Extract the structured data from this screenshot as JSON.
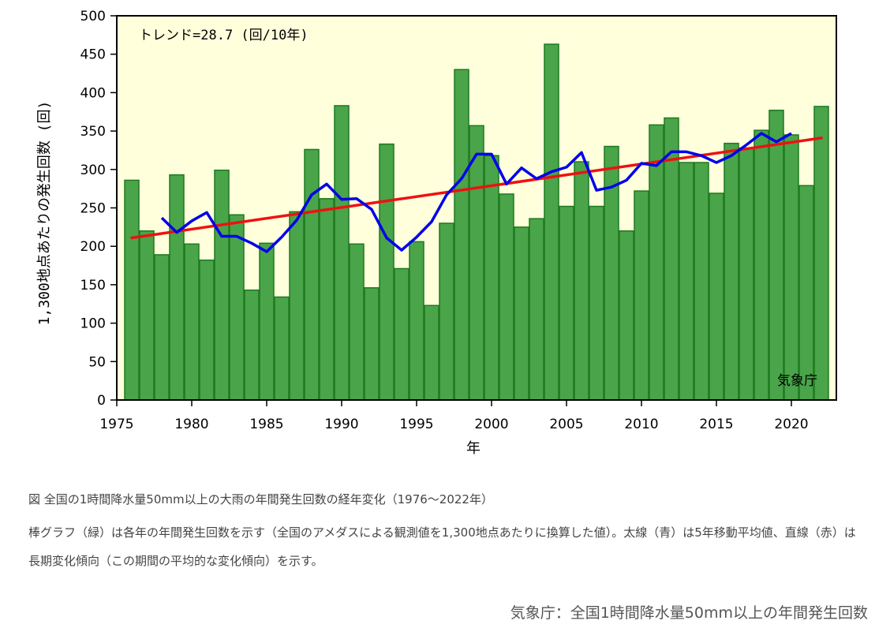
{
  "chart_data": {
    "type": "bar",
    "trend_label": "トレンド=28.7 (回/10年)",
    "agency_label": "気象庁",
    "ylabel": "1,300地点あたりの発生回数 (回)",
    "xlabel": "年",
    "ylim": [
      0,
      500
    ],
    "xlim": [
      1975,
      2023
    ],
    "yticks": [
      0,
      50,
      100,
      150,
      200,
      250,
      300,
      350,
      400,
      450,
      500
    ],
    "xticks": [
      1975,
      1980,
      1985,
      1990,
      1995,
      2000,
      2005,
      2010,
      2015,
      2020
    ],
    "years": [
      1976,
      1977,
      1978,
      1979,
      1980,
      1981,
      1982,
      1983,
      1984,
      1985,
      1986,
      1987,
      1988,
      1989,
      1990,
      1991,
      1992,
      1993,
      1994,
      1995,
      1996,
      1997,
      1998,
      1999,
      2000,
      2001,
      2002,
      2003,
      2004,
      2005,
      2006,
      2007,
      2008,
      2009,
      2010,
      2011,
      2012,
      2013,
      2014,
      2015,
      2016,
      2017,
      2018,
      2019,
      2020,
      2021,
      2022
    ],
    "values": [
      286,
      220,
      189,
      293,
      203,
      182,
      299,
      241,
      143,
      204,
      134,
      245,
      326,
      262,
      383,
      203,
      146,
      333,
      171,
      206,
      123,
      230,
      430,
      357,
      318,
      268,
      225,
      236,
      463,
      252,
      310,
      252,
      330,
      220,
      272,
      358,
      367,
      309,
      309,
      269,
      334,
      328,
      351,
      377,
      345,
      279,
      382
    ],
    "moving_average": {
      "name": "5年移動平均",
      "years": [
        1978,
        1979,
        1980,
        1981,
        1982,
        1983,
        1984,
        1985,
        1986,
        1987,
        1988,
        1989,
        1990,
        1991,
        1992,
        1993,
        1994,
        1995,
        1996,
        1997,
        1998,
        1999,
        2000,
        2001,
        2002,
        2003,
        2004,
        2005,
        2006,
        2007,
        2008,
        2009,
        2010,
        2011,
        2012,
        2013,
        2014,
        2015,
        2016,
        2017,
        2018,
        2019,
        2020
      ],
      "values": [
        237,
        218,
        233,
        244,
        213,
        213,
        204,
        193,
        212,
        234,
        267,
        281,
        261,
        262,
        248,
        211,
        195,
        212,
        232,
        267,
        288,
        320,
        320,
        281,
        302,
        288,
        297,
        303,
        322,
        273,
        277,
        286,
        308,
        305,
        323,
        323,
        318,
        309,
        318,
        332,
        347,
        336,
        347
      ]
    },
    "trend_line": {
      "name": "長期変化傾向",
      "start": [
        1976,
        211
      ],
      "end": [
        2022,
        341
      ]
    },
    "colors": {
      "bar": "#4aa44a",
      "bar_edge": "#1e7a1e",
      "plot_bg": "#ffffdc",
      "moving_average": "#0000ee",
      "trend": "#ee1111"
    }
  },
  "caption": {
    "title": "図 全国の1時間降水量50mm以上の大雨の年間発生回数の経年変化（1976～2022年）",
    "description": "棒グラフ（緑）は各年の年間発生回数を示す（全国のアメダスによる観測値を1,300地点あたりに換算した値）。太線（青）は5年移動平均値、直線（赤）は長期変化傾向（この期間の平均的な変化傾向）を示す。"
  },
  "source": "気象庁：全国1時間降水量50mm以上の年間発生回数"
}
